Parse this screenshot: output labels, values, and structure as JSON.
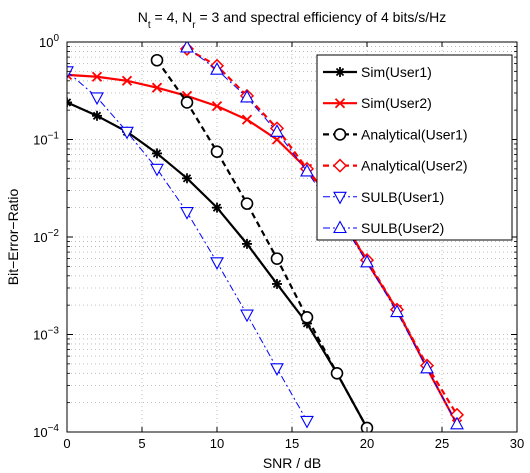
{
  "chart_data": {
    "type": "line",
    "title": {
      "parts": [
        "N",
        "t",
        " = 4, N",
        "r",
        " = 3 and spectral efficiency of 4 bits/s/Hz"
      ]
    },
    "xlabel": "SNR / dB",
    "ylabel": "Bit−Error−Ratio",
    "xlim": [
      0,
      30
    ],
    "ylim": [
      0.0001,
      1
    ],
    "yscale": "log",
    "grid": true,
    "legend_position": "top-right",
    "x_ticks": [
      {
        "value": 0,
        "label": "0"
      },
      {
        "value": 5,
        "label": "5"
      },
      {
        "value": 10,
        "label": "10"
      },
      {
        "value": 15,
        "label": "15"
      },
      {
        "value": 20,
        "label": "20"
      },
      {
        "value": 25,
        "label": "25"
      },
      {
        "value": 30,
        "label": "30"
      }
    ],
    "y_ticks": [
      {
        "value": 1,
        "base": "10",
        "exp": "0"
      },
      {
        "value": 0.1,
        "base": "10",
        "exp": "−1"
      },
      {
        "value": 0.01,
        "base": "10",
        "exp": "−2"
      },
      {
        "value": 0.001,
        "base": "10",
        "exp": "−3"
      },
      {
        "value": 0.0001,
        "base": "10",
        "exp": "−4"
      }
    ],
    "series": [
      {
        "name": "Sim(User1)",
        "color": "#000000",
        "marker": "asterisk",
        "style": "solid",
        "x": [
          0,
          2,
          4,
          6,
          8,
          10,
          12,
          14,
          16,
          18,
          20
        ],
        "y": [
          0.24,
          0.175,
          0.12,
          0.072,
          0.04,
          0.02,
          0.0085,
          0.0033,
          0.0013,
          0.0004,
          0.00011
        ]
      },
      {
        "name": "Sim(User2)",
        "color": "#ff0000",
        "marker": "x",
        "style": "solid",
        "x": [
          0,
          2,
          4,
          6,
          8,
          10,
          12,
          14,
          16,
          18,
          20,
          22,
          24,
          26
        ],
        "y": [
          0.46,
          0.44,
          0.4,
          0.34,
          0.28,
          0.22,
          0.16,
          0.1,
          0.05,
          0.02,
          0.0055,
          0.0018,
          0.00045,
          0.00012
        ]
      },
      {
        "name": "Analytical(User1)",
        "color": "#000000",
        "marker": "circle",
        "style": "dashed",
        "x": [
          6,
          8,
          10,
          12,
          14,
          16,
          18,
          20
        ],
        "y": [
          0.65,
          0.24,
          0.075,
          0.022,
          0.006,
          0.0015,
          0.0004,
          0.00011
        ]
      },
      {
        "name": "Analytical(User2)",
        "color": "#ff0000",
        "marker": "diamond",
        "style": "dashed",
        "x": [
          8,
          10,
          12,
          14,
          16,
          18,
          20,
          22,
          24,
          26
        ],
        "y": [
          0.85,
          0.57,
          0.28,
          0.13,
          0.05,
          0.018,
          0.0058,
          0.0018,
          0.00048,
          0.00015
        ]
      },
      {
        "name": "SULB(User1)",
        "color": "#0000ff",
        "marker": "triangle-down",
        "style": "dashdot",
        "x": [
          0,
          2,
          4,
          6,
          8,
          10,
          12,
          14,
          16
        ],
        "y": [
          0.5,
          0.27,
          0.12,
          0.05,
          0.018,
          0.0055,
          0.0016,
          0.00045,
          0.00013
        ]
      },
      {
        "name": "SULB(User2)",
        "color": "#0000ff",
        "marker": "triangle-up",
        "style": "dashdot",
        "x": [
          8,
          10,
          12,
          14,
          16,
          18,
          20,
          22,
          24,
          26
        ],
        "y": [
          0.88,
          0.52,
          0.27,
          0.12,
          0.047,
          0.017,
          0.0055,
          0.0017,
          0.00045,
          0.00012
        ]
      }
    ]
  }
}
